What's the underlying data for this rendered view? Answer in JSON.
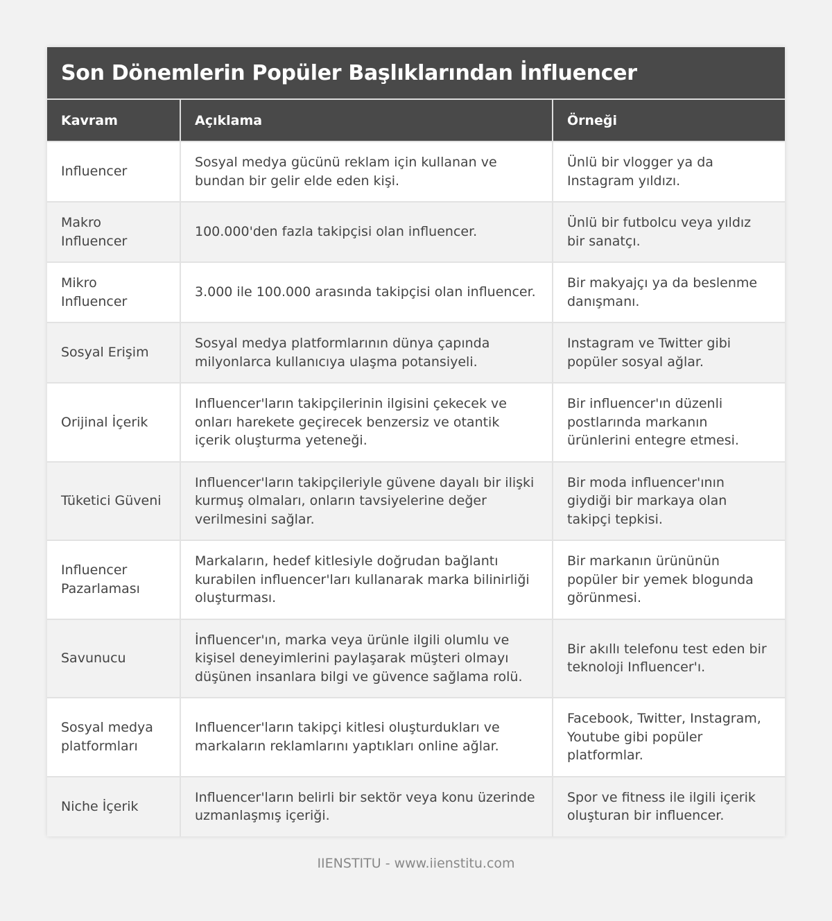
{
  "title": "Son Dönemlerin Popüler Başlıklarından İnfluencer",
  "columns": [
    "Kavram",
    "Açıklama",
    "Örneği"
  ],
  "rows": [
    [
      "Influencer",
      "Sosyal medya gücünü reklam için kullanan ve bundan bir gelir elde eden kişi.",
      "Ünlü bir vlogger ya da Instagram yıldızı."
    ],
    [
      "Makro Influencer",
      "100.000'den fazla takipçisi olan influencer.",
      "Ünlü bir futbolcu veya yıldız bir sanatçı."
    ],
    [
      "Mikro Influencer",
      "3.000 ile 100.000 arasında takipçisi olan influencer.",
      "Bir makyajçı ya da beslenme danışmanı."
    ],
    [
      "Sosyal Erişim",
      "Sosyal medya platformlarının dünya çapında milyonlarca kullanıcıya ulaşma potansiyeli.",
      "Instagram ve Twitter gibi popüler sosyal ağlar."
    ],
    [
      "Orijinal İçerik",
      "Influencer'ların takipçilerinin ilgisini çekecek ve onları harekete geçirecek benzersiz ve otantik içerik oluşturma yeteneği.",
      "Bir influencer'ın düzenli postlarında markanın ürünlerini entegre etmesi."
    ],
    [
      "Tüketici Güveni",
      "Influencer'ların takipçileriyle güvene dayalı bir ilişki kurmuş olmaları, onların tavsiyelerine değer verilmesini sağlar.",
      "Bir moda influencer'ının giydiği bir markaya olan takipçi tepkisi."
    ],
    [
      "Influencer Pazarlaması",
      "Markaların, hedef kitlesiyle doğrudan bağlantı kurabilen influencer'ları kullanarak marka bilinirliği oluşturması.",
      "Bir markanın ürününün popüler bir yemek blogunda görünmesi."
    ],
    [
      "Savunucu",
      "İnfluencer'ın, marka veya ürünle ilgili olumlu ve kişisel deneyimlerini paylaşarak müşteri olmayı düşünen insanlara bilgi ve güvence sağlama rolü.",
      "Bir akıllı telefonu test eden bir teknoloji Influencer'ı."
    ],
    [
      "Sosyal medya platformları",
      "Influencer'ların takipçi kitlesi oluşturdukları ve markaların reklamlarını yaptıkları online ağlar.",
      "Facebook, Twitter, Instagram, Youtube gibi popüler platformlar."
    ],
    [
      "Niche İçerik",
      "Influencer'ların belirli bir sektör veya konu üzerinde uzmanlaşmış içeriği.",
      "Spor ve fitness ile ilgili içerik oluşturan bir influencer."
    ]
  ],
  "footer": "IIENSTITU - www.iienstitu.com"
}
